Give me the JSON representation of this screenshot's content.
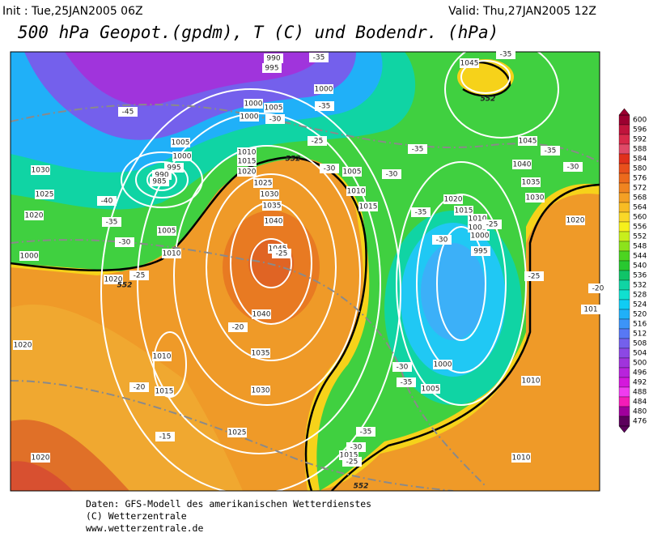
{
  "header": {
    "init": "Init : Tue,25JAN2005 06Z",
    "valid": "Valid: Thu,27JAN2005 12Z",
    "title": "500 hPa Geopot.(gpdm), T (C) und Bodendr. (hPa)"
  },
  "map": {
    "pressure_labels": [
      "1045",
      "990",
      "995",
      "1000",
      "1000",
      "1005",
      "1000",
      "1005",
      "1000",
      "995",
      "990",
      "985",
      "1030",
      "1025",
      "1020",
      "1000",
      "1020",
      "1005",
      "1010",
      "1010",
      "1015",
      "1020",
      "1025",
      "1030",
      "1035",
      "1040",
      "1045",
      "1040",
      "1035",
      "1030",
      "1025",
      "1010",
      "1015",
      "1020",
      "1020",
      "1005",
      "1010",
      "1015",
      "1020",
      "1015",
      "1010",
      "1005",
      "1000",
      "995",
      "1000",
      "1005",
      "1015",
      "1010",
      "1010",
      "1045",
      "1040",
      "1035",
      "1030",
      "1020",
      "101"
    ],
    "temperature_labels": [
      "-35",
      "-35",
      "-45",
      "-40",
      "-35",
      "-30",
      "-25",
      "-30",
      "-35",
      "-25",
      "-30",
      "-30",
      "-35",
      "-35",
      "-30",
      "-35",
      "-25",
      "-30",
      "-25",
      "-20",
      "-20",
      "-15",
      "-30",
      "-35",
      "-35",
      "-30",
      "-25",
      "-20",
      "-25"
    ],
    "geopotential_labels": [
      "552",
      "552",
      "552",
      "552"
    ]
  },
  "legend": {
    "ticks": [
      600,
      596,
      592,
      588,
      584,
      580,
      576,
      572,
      568,
      564,
      560,
      556,
      552,
      548,
      544,
      540,
      536,
      532,
      528,
      524,
      520,
      516,
      512,
      508,
      504,
      500,
      496,
      492,
      488,
      484,
      480,
      476
    ],
    "colors": [
      "#9c0030",
      "#c0143c",
      "#d82a4a",
      "#e04a68",
      "#e0301c",
      "#e8501c",
      "#ec6a1c",
      "#f08420",
      "#f4a024",
      "#f8bc24",
      "#fad828",
      "#f6f01c",
      "#c8ee1c",
      "#8ce21c",
      "#4cd420",
      "#28c830",
      "#10c468",
      "#10d4a4",
      "#10e0d0",
      "#10ccf4",
      "#20b0f8",
      "#3c94f8",
      "#5878f4",
      "#7460ec",
      "#8c48e4",
      "#a034dc",
      "#b824dc",
      "#d418dc",
      "#f03cf0",
      "#f41cb8",
      "#a0009c",
      "#5c005c"
    ]
  },
  "footer": {
    "lines": [
      "Daten: GFS-Modell des amerikanischen Wetterdienstes",
      "(C) Wetterzentrale",
      "www.wetterzentrale.de"
    ]
  }
}
